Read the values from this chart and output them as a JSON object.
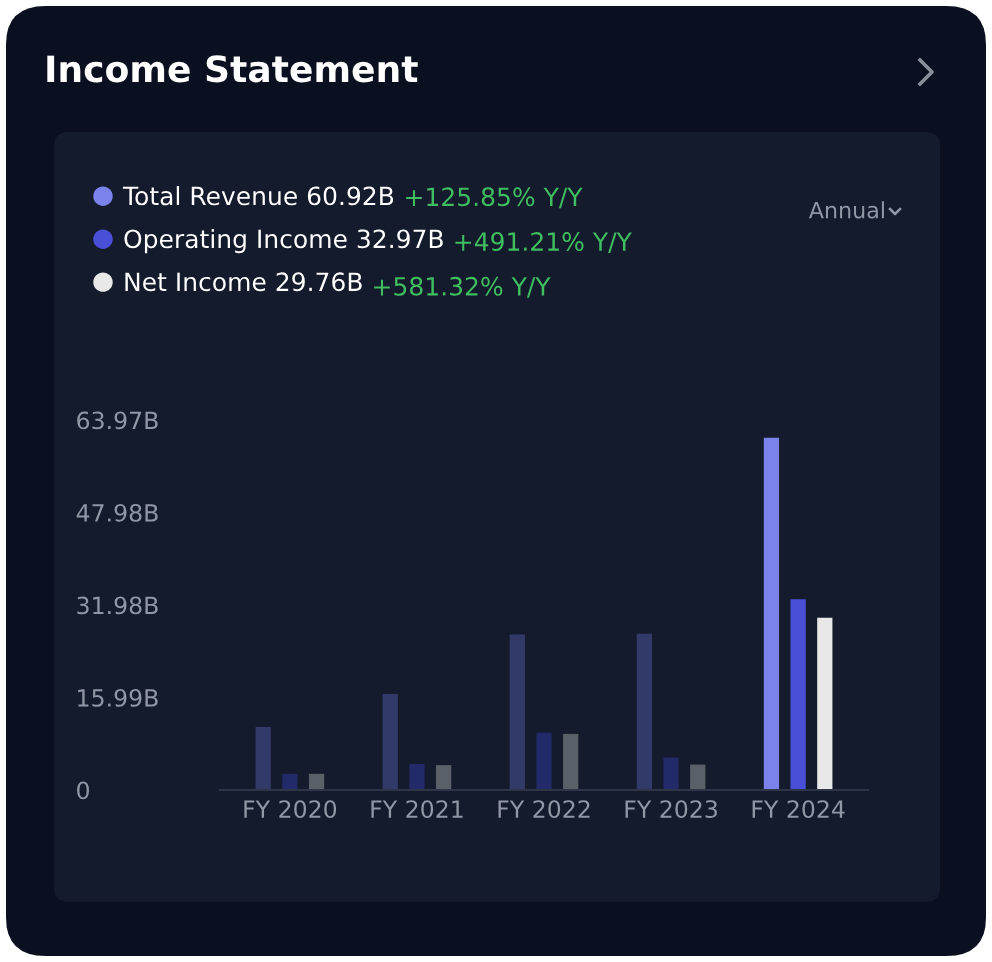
{
  "chart_data": {
    "type": "bar",
    "title": "Income Statement",
    "categories": [
      "FY 2020",
      "FY 2021",
      "FY 2022",
      "FY 2023",
      "FY 2024"
    ],
    "series": [
      {
        "name": "Total Revenue 60.92B",
        "color": "#7b83eb",
        "colors": [
          "#323a6a",
          "#323a6a",
          "#323a6a",
          "#323a6a",
          "#7b83eb"
        ],
        "values": [
          10.9,
          16.6,
          26.9,
          27.0,
          60.9
        ]
      },
      {
        "name": "Operating Income 32.97B",
        "color": "#4a4fd8",
        "colors": [
          "#232a6a",
          "#232a6a",
          "#232a6a",
          "#232a6a",
          "#4a4fd8"
        ],
        "values": [
          2.8,
          4.5,
          9.9,
          5.6,
          33.0
        ]
      },
      {
        "name": "Net Income 29.76B",
        "color": "#e8e8e8",
        "colors": [
          "#5a6068",
          "#5a6068",
          "#5a6068",
          "#5a6068",
          "#e8e8e8"
        ],
        "values": [
          2.8,
          4.3,
          9.7,
          4.4,
          29.8
        ]
      }
    ],
    "annotations": [
      "+125.85% Y/Y",
      "+491.21% Y/Y",
      "+581.32% Y/Y",
      "Annual"
    ],
    "ylim": [
      0,
      63.97
    ],
    "yticks": [
      0,
      {
        "value": 15.99,
        "label": "15.99B"
      },
      {
        "value": 31.98,
        "label": "31.98B"
      },
      {
        "value": 47.98,
        "label": "47.98B"
      },
      {
        "value": 63.97,
        "label": "63.97B"
      }
    ],
    "grid": false,
    "legend": "top left"
  }
}
